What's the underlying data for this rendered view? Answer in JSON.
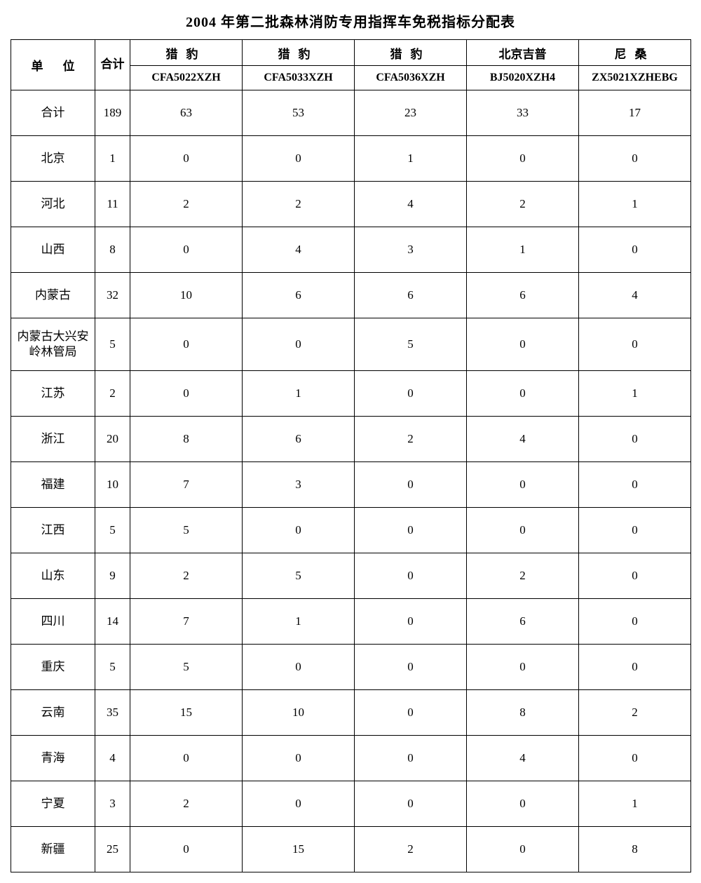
{
  "title": "2004 年第二批森林消防专用指挥车免税指标分配表",
  "headers": {
    "unit": "单位",
    "total": "合计",
    "vehicles": [
      {
        "brand": "猎豹",
        "model": "CFA5022XZH",
        "spaced": true
      },
      {
        "brand": "猎豹",
        "model": "CFA5033XZH",
        "spaced": true
      },
      {
        "brand": "猎豹",
        "model": "CFA5036XZH",
        "spaced": true
      },
      {
        "brand": "北京吉普",
        "model": "BJ5020XZH4",
        "spaced": false
      },
      {
        "brand": "尼桑",
        "model": "ZX5021XZHEBG",
        "spaced": true
      }
    ]
  },
  "rows": [
    {
      "unit": "合计",
      "total": 189,
      "v": [
        63,
        53,
        23,
        33,
        17
      ],
      "tall": false
    },
    {
      "unit": "北京",
      "total": 1,
      "v": [
        0,
        0,
        1,
        0,
        0
      ],
      "tall": false
    },
    {
      "unit": "河北",
      "total": 11,
      "v": [
        2,
        2,
        4,
        2,
        1
      ],
      "tall": false
    },
    {
      "unit": "山西",
      "total": 8,
      "v": [
        0,
        4,
        3,
        1,
        0
      ],
      "tall": false
    },
    {
      "unit": "内蒙古",
      "total": 32,
      "v": [
        10,
        6,
        6,
        6,
        4
      ],
      "tall": false
    },
    {
      "unit": "内蒙古大兴安岭林管局",
      "total": 5,
      "v": [
        0,
        0,
        5,
        0,
        0
      ],
      "tall": true
    },
    {
      "unit": "江苏",
      "total": 2,
      "v": [
        0,
        1,
        0,
        0,
        1
      ],
      "tall": false
    },
    {
      "unit": "浙江",
      "total": 20,
      "v": [
        8,
        6,
        2,
        4,
        0
      ],
      "tall": false
    },
    {
      "unit": "福建",
      "total": 10,
      "v": [
        7,
        3,
        0,
        0,
        0
      ],
      "tall": false
    },
    {
      "unit": "江西",
      "total": 5,
      "v": [
        5,
        0,
        0,
        0,
        0
      ],
      "tall": false
    },
    {
      "unit": "山东",
      "total": 9,
      "v": [
        2,
        5,
        0,
        2,
        0
      ],
      "tall": false
    },
    {
      "unit": "四川",
      "total": 14,
      "v": [
        7,
        1,
        0,
        6,
        0
      ],
      "tall": false
    },
    {
      "unit": "重庆",
      "total": 5,
      "v": [
        5,
        0,
        0,
        0,
        0
      ],
      "tall": false
    },
    {
      "unit": "云南",
      "total": 35,
      "v": [
        15,
        10,
        0,
        8,
        2
      ],
      "tall": false
    },
    {
      "unit": "青海",
      "total": 4,
      "v": [
        0,
        0,
        0,
        4,
        0
      ],
      "tall": false
    },
    {
      "unit": "宁夏",
      "total": 3,
      "v": [
        2,
        0,
        0,
        0,
        1
      ],
      "tall": false
    },
    {
      "unit": "新疆",
      "total": 25,
      "v": [
        0,
        15,
        2,
        0,
        8
      ],
      "tall": false
    }
  ]
}
